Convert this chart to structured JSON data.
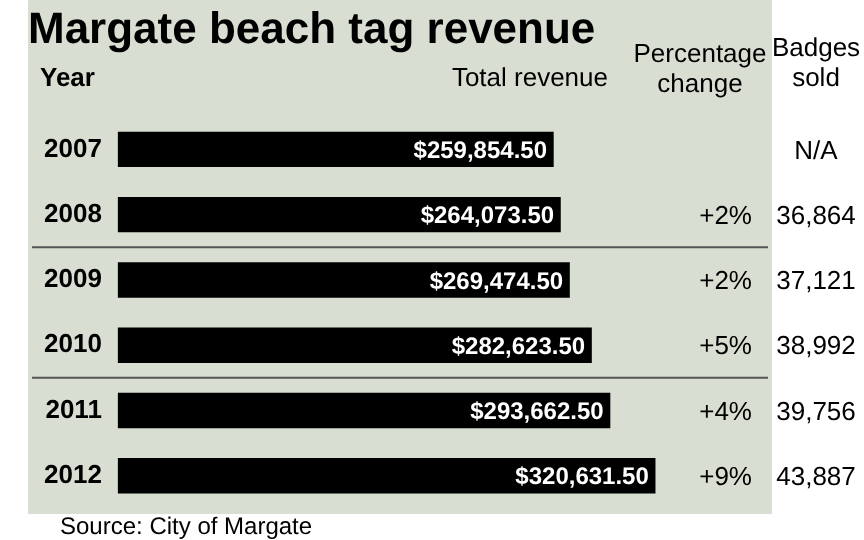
{
  "chart_data": {
    "type": "bar",
    "orientation": "horizontal",
    "title": "Margate beach tag revenue",
    "categories": [
      "2007",
      "2008",
      "2009",
      "2010",
      "2011",
      "2012"
    ],
    "values": [
      259854.5,
      264073.5,
      269474.5,
      282623.5,
      293662.5,
      320631.5
    ],
    "color": "#000000",
    "value_labels": [
      "$259,854.50",
      "$264,073.50",
      "$269,474.50",
      "$282,623.50",
      "$293,662.50",
      "$320,631.50"
    ],
    "tick_labels": "y",
    "annotations": [
      "Year",
      "Total revenue",
      "Percentage change",
      "Badges sold",
      "N/A",
      "+2%",
      "36,864",
      "+2%",
      "37,121",
      "+5%",
      "38,992",
      "+4%",
      "39,756",
      "+9%",
      "43,887",
      "Source: City of Margate"
    ]
  }
}
